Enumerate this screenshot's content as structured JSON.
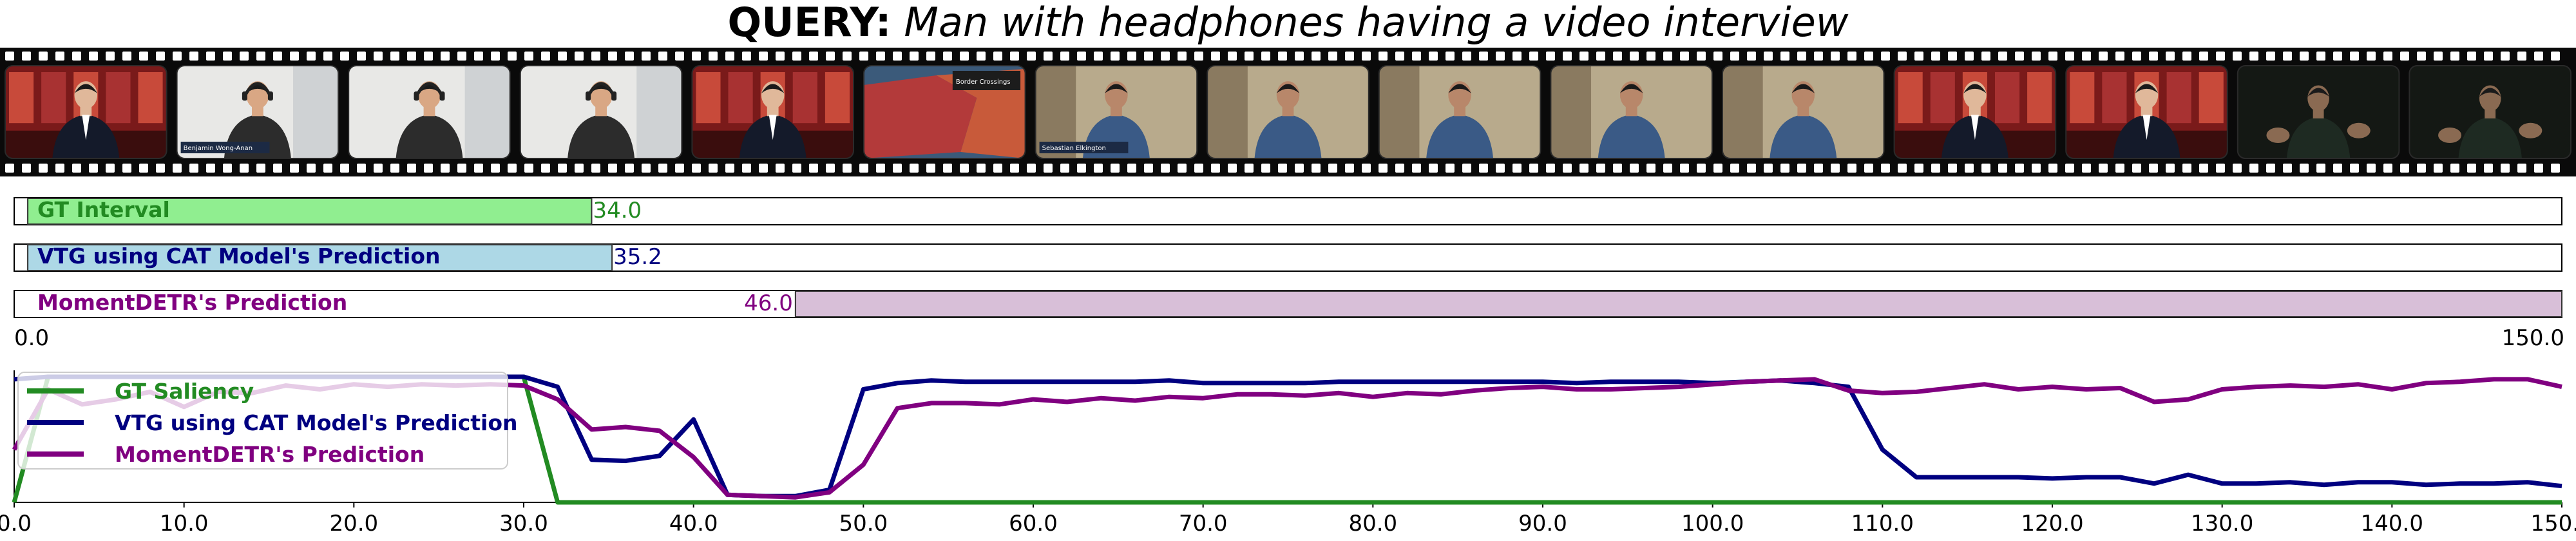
{
  "query": {
    "label": "QUERY:",
    "text": "Man with headphones having a video interview"
  },
  "filmstrip": {
    "frames": [
      {
        "scene": "news-anchor-red-studio"
      },
      {
        "scene": "man-with-headphones",
        "caption": "Benjamin Wong-Anan"
      },
      {
        "scene": "man-with-headphones"
      },
      {
        "scene": "man-with-headphones"
      },
      {
        "scene": "news-anchor-red-studio"
      },
      {
        "scene": "red-map",
        "caption": "Border Crossings"
      },
      {
        "scene": "man-blue-shirt",
        "caption": "Sebastian Elkington"
      },
      {
        "scene": "man-blue-shirt"
      },
      {
        "scene": "man-blue-shirt"
      },
      {
        "scene": "man-blue-shirt"
      },
      {
        "scene": "man-blue-shirt"
      },
      {
        "scene": "news-anchor-red-studio"
      },
      {
        "scene": "news-anchor-red-studio"
      },
      {
        "scene": "man-dark-room"
      },
      {
        "scene": "man-dark-room"
      }
    ]
  },
  "chart_data": [
    {
      "type": "interval",
      "xlim": [
        0,
        150
      ],
      "rows": [
        {
          "name": "GT Interval",
          "start": 0.8,
          "end": 34.0,
          "end_label": "34.0",
          "fill": "#90ee90",
          "text_color": "#228b22"
        },
        {
          "name": "VTG using CAT Model's Prediction",
          "start": 0.8,
          "end": 35.2,
          "end_label": "35.2",
          "fill": "#add8e6",
          "text_color": "#000080"
        },
        {
          "name": "MomentDETR's Prediction",
          "start": 46.0,
          "end": 150.0,
          "start_label": "46.0",
          "fill": "#d8bfd8",
          "text_color": "#800080"
        }
      ],
      "axis_labels": {
        "min": "0.0",
        "max": "150.0"
      }
    },
    {
      "type": "line",
      "xlim": [
        0,
        150
      ],
      "ylim": [
        0,
        1
      ],
      "grid": false,
      "legend_position": "top-left",
      "xticks": [
        0,
        10,
        20,
        30,
        40,
        50,
        60,
        70,
        80,
        90,
        100,
        110,
        120,
        130,
        140,
        150
      ],
      "xtick_labels": [
        "0.0",
        "10.0",
        "20.0",
        "30.0",
        "40.0",
        "50.0",
        "60.0",
        "70.0",
        "80.0",
        "90.0",
        "100.0",
        "110.0",
        "120.0",
        "130.0",
        "140.0",
        "150.0"
      ],
      "series": [
        {
          "name": "GT Saliency",
          "color": "#228b22",
          "x": [
            0,
            2,
            30,
            32,
            150
          ],
          "y": [
            0,
            1,
            1,
            0,
            0
          ]
        },
        {
          "name": "VTG using CAT Model's Prediction",
          "color": "#000080",
          "x": [
            0,
            2,
            4,
            6,
            8,
            10,
            12,
            14,
            16,
            18,
            20,
            22,
            24,
            26,
            28,
            30,
            32,
            34,
            36,
            38,
            40,
            42,
            44,
            46,
            48,
            50,
            52,
            54,
            56,
            58,
            60,
            62,
            64,
            66,
            68,
            70,
            72,
            74,
            76,
            78,
            80,
            82,
            84,
            86,
            88,
            90,
            92,
            94,
            96,
            98,
            100,
            102,
            104,
            106,
            108,
            110,
            112,
            114,
            116,
            118,
            120,
            122,
            124,
            126,
            128,
            130,
            132,
            134,
            136,
            138,
            140,
            142,
            144,
            146,
            148,
            150
          ],
          "y": [
            0.98,
            1,
            1,
            1,
            1,
            1,
            1,
            1,
            1,
            1,
            1,
            1,
            1,
            1,
            1,
            1,
            0.92,
            0.34,
            0.33,
            0.37,
            0.66,
            0.06,
            0.05,
            0.05,
            0.1,
            0.9,
            0.95,
            0.97,
            0.96,
            0.96,
            0.96,
            0.96,
            0.96,
            0.96,
            0.97,
            0.95,
            0.95,
            0.95,
            0.95,
            0.96,
            0.96,
            0.96,
            0.96,
            0.96,
            0.96,
            0.96,
            0.95,
            0.96,
            0.96,
            0.96,
            0.95,
            0.96,
            0.97,
            0.95,
            0.92,
            0.42,
            0.2,
            0.2,
            0.2,
            0.2,
            0.19,
            0.2,
            0.2,
            0.15,
            0.22,
            0.15,
            0.15,
            0.16,
            0.14,
            0.16,
            0.16,
            0.14,
            0.15,
            0.15,
            0.16,
            0.13
          ]
        },
        {
          "name": "MomentDETR's Prediction",
          "color": "#800080",
          "x": [
            0,
            2,
            4,
            6,
            8,
            10,
            12,
            14,
            16,
            18,
            20,
            22,
            24,
            26,
            28,
            30,
            32,
            34,
            36,
            38,
            40,
            42,
            44,
            46,
            48,
            50,
            52,
            54,
            56,
            58,
            60,
            62,
            64,
            66,
            68,
            70,
            72,
            74,
            76,
            78,
            80,
            82,
            84,
            86,
            88,
            90,
            92,
            94,
            96,
            98,
            100,
            102,
            104,
            106,
            108,
            110,
            112,
            114,
            116,
            118,
            120,
            122,
            124,
            126,
            128,
            130,
            132,
            134,
            136,
            138,
            140,
            142,
            144,
            146,
            148,
            150
          ],
          "y": [
            0.42,
            0.9,
            0.78,
            0.82,
            0.88,
            0.76,
            0.88,
            0.87,
            0.93,
            0.9,
            0.94,
            0.92,
            0.94,
            0.93,
            0.94,
            0.93,
            0.82,
            0.58,
            0.6,
            0.57,
            0.36,
            0.06,
            0.05,
            0.04,
            0.08,
            0.3,
            0.75,
            0.79,
            0.79,
            0.78,
            0.82,
            0.8,
            0.83,
            0.81,
            0.84,
            0.83,
            0.86,
            0.86,
            0.85,
            0.87,
            0.84,
            0.87,
            0.86,
            0.89,
            0.91,
            0.92,
            0.9,
            0.9,
            0.91,
            0.92,
            0.94,
            0.96,
            0.97,
            0.98,
            0.89,
            0.87,
            0.88,
            0.91,
            0.94,
            0.9,
            0.92,
            0.9,
            0.91,
            0.8,
            0.82,
            0.9,
            0.92,
            0.93,
            0.92,
            0.94,
            0.9,
            0.95,
            0.96,
            0.98,
            0.98,
            0.92
          ]
        }
      ]
    }
  ]
}
